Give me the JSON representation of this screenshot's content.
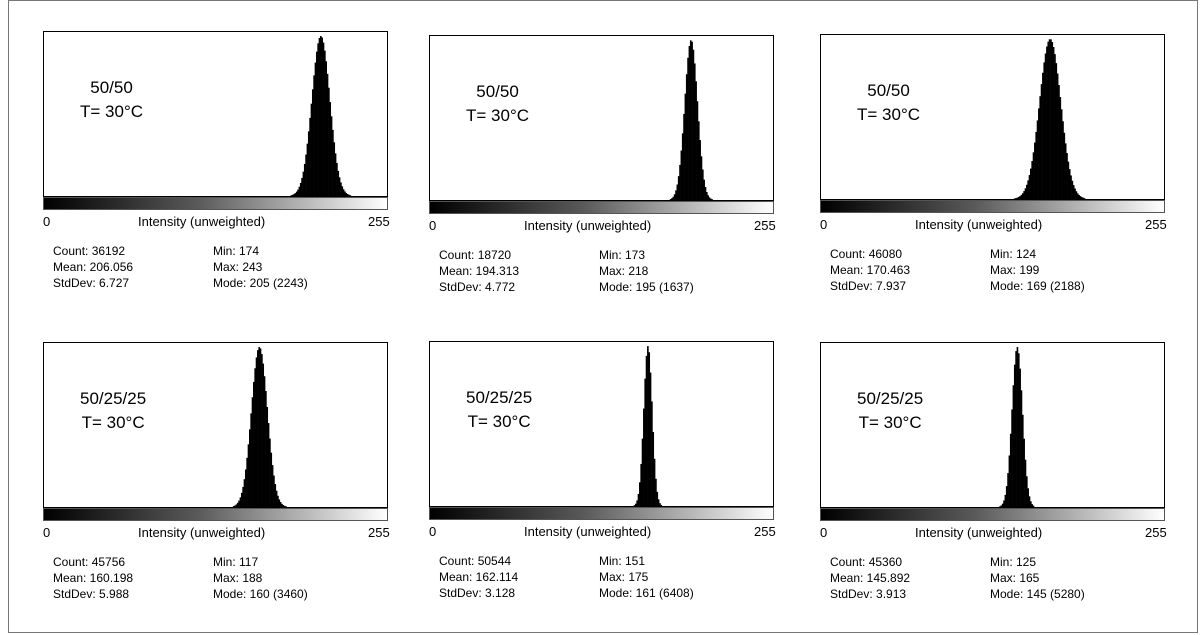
{
  "chart_data": [
    {
      "type": "histogram",
      "label_line1": "50/50",
      "label_line2": "T= 30°C",
      "xlabel": "Intensity (unweighted)",
      "xmin": 0,
      "xmax": 255,
      "stats": {
        "count": "Count: 36192",
        "mean": "Mean: 206.056",
        "stddev": "StdDev: 6.727",
        "min": "Min: 174",
        "max": "Max: 243",
        "mode": "Mode: 205 (2243)"
      },
      "bins_summary": {
        "min": 174,
        "max": 243,
        "mean": 206.056,
        "stddev": 6.727,
        "mode": 205,
        "mode_count": 2243
      }
    },
    {
      "type": "histogram",
      "label_line1": "50/50",
      "label_line2": "T= 30°C",
      "xlabel": "Intensity (unweighted)",
      "xmin": 0,
      "xmax": 255,
      "stats": {
        "count": "Count: 18720",
        "mean": "Mean: 194.313",
        "stddev": "StdDev: 4.772",
        "min": "Min: 173",
        "max": "Max: 218",
        "mode": "Mode: 195 (1637)"
      },
      "bins_summary": {
        "min": 173,
        "max": 218,
        "mean": 194.313,
        "stddev": 4.772,
        "mode": 195,
        "mode_count": 1637
      }
    },
    {
      "type": "histogram",
      "label_line1": "50/50",
      "label_line2": "T= 30°C",
      "xlabel": "Intensity (unweighted)",
      "xmin": 0,
      "xmax": 255,
      "stats": {
        "count": "Count: 46080",
        "mean": "Mean: 170.463",
        "stddev": "StdDev: 7.937",
        "min": "Min: 124",
        "max": "Max: 199",
        "mode": "Mode: 169 (2188)"
      },
      "bins_summary": {
        "min": 124,
        "max": 199,
        "mean": 170.463,
        "stddev": 7.937,
        "mode": 169,
        "mode_count": 2188
      }
    },
    {
      "type": "histogram",
      "label_line1": "50/25/25",
      "label_line2": "T= 30°C",
      "xlabel": "Intensity (unweighted)",
      "xmin": 0,
      "xmax": 255,
      "stats": {
        "count": "Count: 45756",
        "mean": "Mean: 160.198",
        "stddev": "StdDev: 5.988",
        "min": "Min: 117",
        "max": "Max: 188",
        "mode": "Mode: 160 (3460)"
      },
      "bins_summary": {
        "min": 117,
        "max": 188,
        "mean": 160.198,
        "stddev": 5.988,
        "mode": 160,
        "mode_count": 3460
      }
    },
    {
      "type": "histogram",
      "label_line1": "50/25/25",
      "label_line2": "T= 30°C",
      "xlabel": "Intensity (unweighted)",
      "xmin": 0,
      "xmax": 255,
      "stats": {
        "count": "Count: 50544",
        "mean": "Mean: 162.114",
        "stddev": "StdDev: 3.128",
        "min": "Min: 151",
        "max": "Max: 175",
        "mode": "Mode: 161 (6408)"
      },
      "bins_summary": {
        "min": 151,
        "max": 175,
        "mean": 162.114,
        "stddev": 3.128,
        "mode": 161,
        "mode_count": 6408
      }
    },
    {
      "type": "histogram",
      "label_line1": "50/25/25",
      "label_line2": "T= 30°C",
      "xlabel": "Intensity (unweighted)",
      "xmin": 0,
      "xmax": 255,
      "stats": {
        "count": "Count: 45360",
        "mean": "Mean: 145.892",
        "stddev": "StdDev: 3.913",
        "min": "Min: 125",
        "max": "Max: 165",
        "mode": "Mode: 145 (5280)"
      },
      "bins_summary": {
        "min": 125,
        "max": 165,
        "mean": 145.892,
        "stddev": 3.913,
        "mode": 145,
        "mode_count": 5280
      }
    }
  ]
}
